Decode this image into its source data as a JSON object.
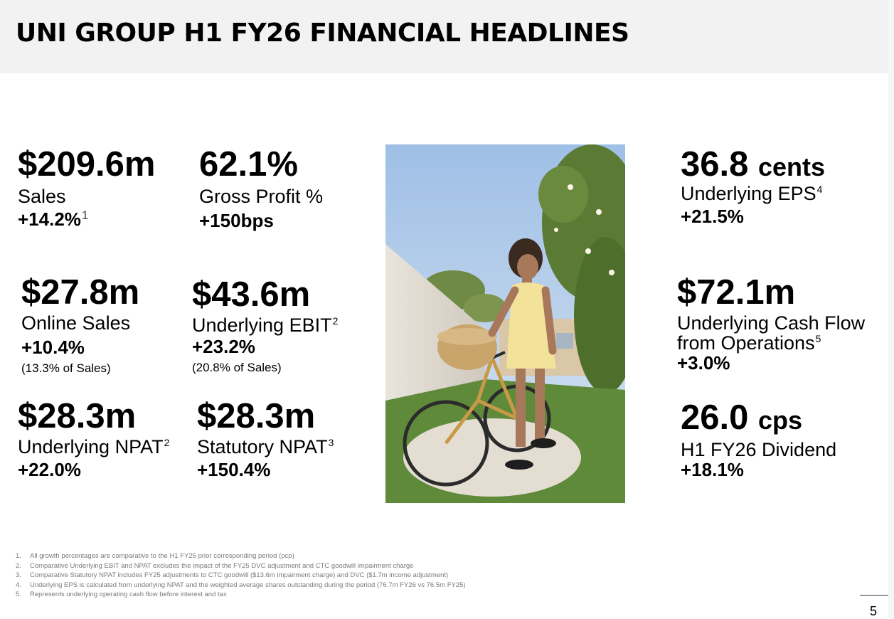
{
  "header": {
    "title": "UNI GROUP H1 FY26 FINANCIAL HEADLINES"
  },
  "metrics": {
    "sales": {
      "value": "$209.6m",
      "label": "Sales",
      "growth": "+14.2%",
      "growth_ref": "1"
    },
    "gross_profit": {
      "value": "62.1%",
      "label": "Gross Profit %",
      "growth": "+150bps"
    },
    "online_sales": {
      "value": "$27.8m",
      "label": "Online Sales",
      "growth": "+10.4%",
      "note": "(13.3% of Sales)"
    },
    "underlying_ebit": {
      "value": "$43.6m",
      "label": "Underlying EBIT",
      "label_ref": "2",
      "growth": "+23.2%",
      "note": "(20.8% of Sales)"
    },
    "underlying_npat": {
      "value": "$28.3m",
      "label": "Underlying NPAT",
      "label_ref": "2",
      "growth": "+22.0%"
    },
    "statutory_npat": {
      "value": "$28.3m",
      "label": "Statutory NPAT",
      "label_ref": "3",
      "growth": "+150.4%"
    },
    "underlying_eps": {
      "value": "36.8",
      "unit": "cents",
      "label": "Underlying EPS",
      "label_ref": "4",
      "growth": "+21.5%"
    },
    "cash_flow": {
      "value": "$72.1m",
      "label_line1": "Underlying Cash Flow",
      "label_line2": "from Operations",
      "label_ref": "5",
      "growth": "+3.0%"
    },
    "dividend": {
      "value": "26.0",
      "unit": "cps",
      "label": "H1 FY26 Dividend",
      "growth": "+18.1%"
    }
  },
  "footnotes": [
    {
      "num": "1.",
      "text": "All growth percentages are comparative to the H1 FY25 prior corresponding period (pcp)"
    },
    {
      "num": "2.",
      "text": "Comparative Underlying EBIT and NPAT excludes the impact of the FY25 DVC adjustment and CTC goodwill impairment charge"
    },
    {
      "num": "3.",
      "text": "Comparative Statutory NPAT includes FY25 adjustments to CTC goodwill ($13.6m impairment charge) and DVC ($1.7m income adjustment)"
    },
    {
      "num": "4.",
      "text": "Underlying EPS is calculated from underlying NPAT and the weighted average shares outstanding during the period (76.7m FY26 vs 76.5m FY25)"
    },
    {
      "num": "5.",
      "text": "Represents underlying operating cash flow before interest and tax"
    }
  ],
  "page_number": "5",
  "colors": {
    "header_bg": "#f2f2f2",
    "footnote_text": "#7a7a7a"
  }
}
